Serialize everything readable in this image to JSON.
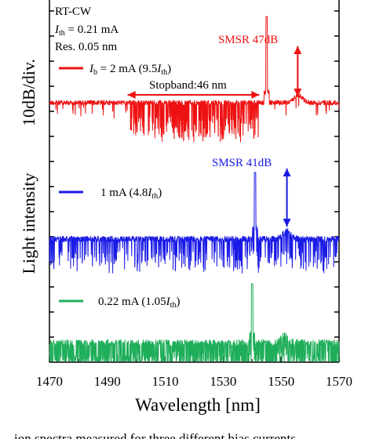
{
  "chart_data": {
    "type": "line",
    "xlabel": "Wavelength [nm]",
    "ylabel": "Light intensity",
    "ylabel_scale": "10dB/div.",
    "xlim": [
      1470,
      1570
    ],
    "xticks": [
      1470,
      1490,
      1510,
      1530,
      1550,
      1570
    ],
    "grid": false,
    "conditions": {
      "l1": "RT-CW",
      "l2_sym": "I",
      "l2_sub": "th",
      "l2_rest": " = 0.21 mA",
      "l3": "Res. 0.05 nm"
    },
    "series": [
      {
        "color": "#ee1111",
        "label_parts": [
          "I",
          "b",
          " = 2 mA (9.5",
          "I",
          "th",
          ")"
        ],
        "lasing_peak_nm": 1545,
        "side_mode_nm": 1556,
        "smsr_db": 47,
        "smsr_label": "SMSR 47dB",
        "stopband_nm": 46,
        "stopband_range_nm": [
          1497,
          1543
        ],
        "stopband_label": "Stopband:46 nm"
      },
      {
        "color": "#1a1ae6",
        "label_parts": [
          "1 mA (4.8",
          "I",
          "th",
          ")"
        ],
        "lasing_peak_nm": 1541,
        "side_mode_nm": 1552,
        "smsr_db": 41,
        "smsr_label": "SMSR 41dB"
      },
      {
        "color": "#1fae5a",
        "label_parts": [
          "0.22 mA (1.05",
          "I",
          "th",
          ")"
        ],
        "lasing_peak_nm": 1540,
        "side_mode_nm": 1551
      }
    ],
    "caption_fragment": "ion spectra measured for three different bias currents"
  }
}
